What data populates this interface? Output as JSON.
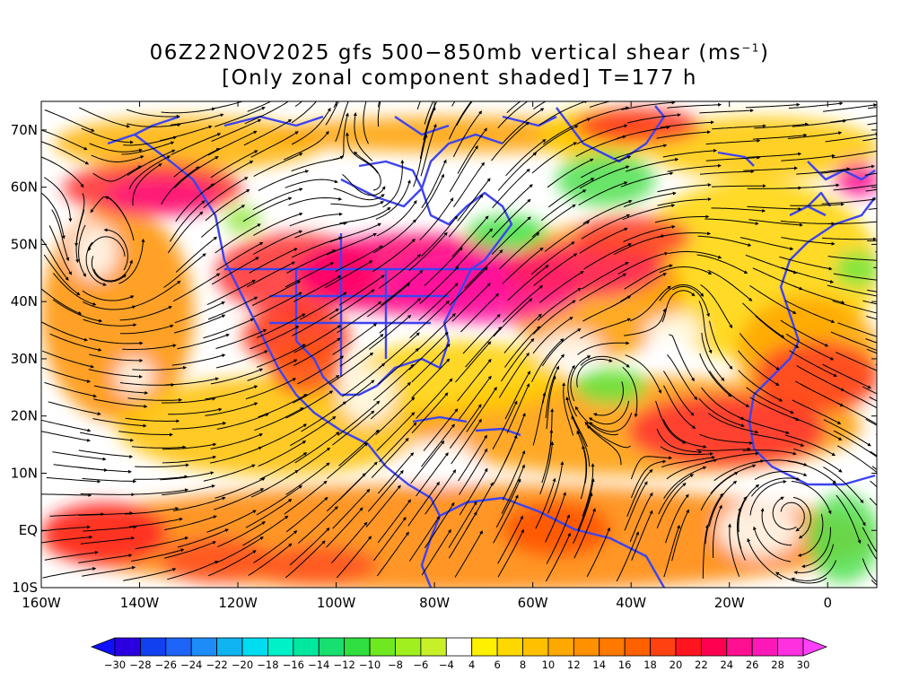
{
  "title": {
    "line1_prefix": "06Z22NOV2025 gfs 500−850mb vertical shear (ms",
    "line1_sup": "−1",
    "line1_suffix": ")",
    "line2": "[Only zonal component shaded] T=177 h"
  },
  "axes": {
    "y_ticks": [
      {
        "lat": 70,
        "label": "70N"
      },
      {
        "lat": 60,
        "label": "60N"
      },
      {
        "lat": 50,
        "label": "50N"
      },
      {
        "lat": 40,
        "label": "40N"
      },
      {
        "lat": 30,
        "label": "30N"
      },
      {
        "lat": 20,
        "label": "20N"
      },
      {
        "lat": 10,
        "label": "10N"
      },
      {
        "lat": 0,
        "label": "EQ"
      },
      {
        "lat": -10,
        "label": "10S"
      }
    ],
    "x_ticks": [
      {
        "lon": -160,
        "label": "160W"
      },
      {
        "lon": -140,
        "label": "140W"
      },
      {
        "lon": -120,
        "label": "120W"
      },
      {
        "lon": -100,
        "label": "100W"
      },
      {
        "lon": -80,
        "label": "80W"
      },
      {
        "lon": -60,
        "label": "60W"
      },
      {
        "lon": -40,
        "label": "40W"
      },
      {
        "lon": -20,
        "label": "20W"
      },
      {
        "lon": 0,
        "label": "0"
      }
    ],
    "lon_range": [
      -160,
      10
    ],
    "lat_range": [
      -10,
      75
    ]
  },
  "colorbar": {
    "labels": [
      "-30",
      "-28",
      "-26",
      "-24",
      "-22",
      "-20",
      "-18",
      "-16",
      "-14",
      "-12",
      "-10",
      "-8",
      "-6",
      "-4",
      "4",
      "6",
      "8",
      "10",
      "12",
      "14",
      "16",
      "18",
      "20",
      "22",
      "24",
      "26",
      "28",
      "30"
    ],
    "colors": [
      "#2a00e0",
      "#1040f0",
      "#1e64f8",
      "#1e8cf8",
      "#10b4f0",
      "#00dcf0",
      "#00f0c8",
      "#00e8a0",
      "#18e070",
      "#30e040",
      "#70e820",
      "#a0f020",
      "#c8f028",
      "#ffffff",
      "#fff000",
      "#ffd800",
      "#ffc000",
      "#ffa800",
      "#ff9000",
      "#ff7800",
      "#ff6000",
      "#ff4010",
      "#ff1420",
      "#ff0050",
      "#ff1090",
      "#ff18b8",
      "#ff30e0"
    ],
    "left_tip_color": "#1010ff",
    "right_tip_color": "#ff40ff"
  },
  "colors": {
    "coastline": "#3d44ee",
    "streamline": "#000000",
    "background": "#ffffff"
  }
}
